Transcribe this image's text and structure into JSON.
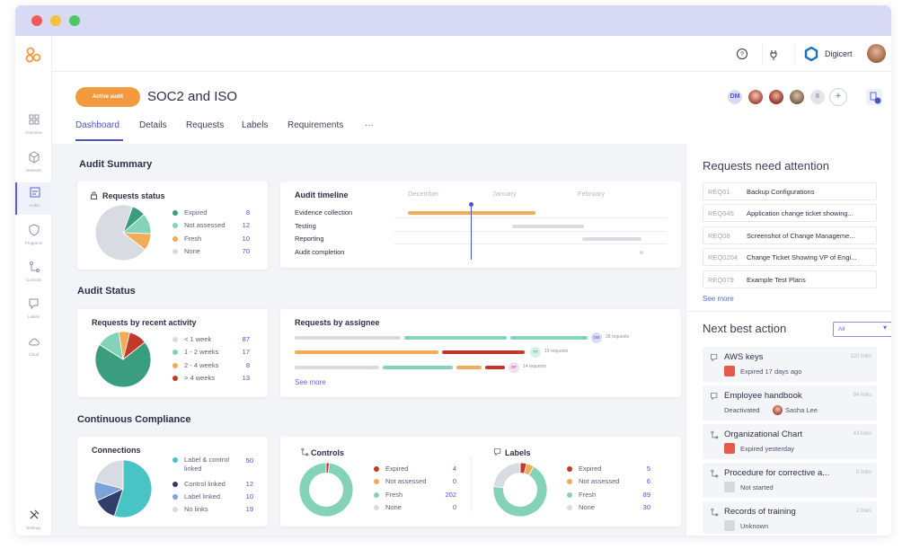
{
  "colors": {
    "teal": "#84d3b8",
    "green": "#3a9e7e",
    "orange": "#f2ac55",
    "gray": "#d9dbe3",
    "red": "#c0392b",
    "blue": "#4a55c8",
    "navy": "#2f3e6b",
    "lightblue": "#7ba3d9",
    "cyan": "#48c4c4"
  },
  "sidebar": {
    "items": [
      {
        "label": "Overview",
        "icon": "grid-icon"
      },
      {
        "label": "Network",
        "icon": "cube-icon"
      },
      {
        "label": "Audits",
        "icon": "audit-icon"
      },
      {
        "label": "Programs",
        "icon": "shield-icon"
      },
      {
        "label": "Controls",
        "icon": "controls-icon"
      },
      {
        "label": "Labels",
        "icon": "label-icon"
      },
      {
        "label": "Cloud",
        "icon": "cloud-icon"
      }
    ],
    "settings": "Settings"
  },
  "topbar": {
    "org": "Digicert"
  },
  "header": {
    "badge": "Active audit",
    "title": "SOC2 and ISO",
    "tabs": [
      "Dashboard",
      "Details",
      "Requests",
      "Labels",
      "Requirements",
      "···"
    ],
    "avatar_initials": "DM",
    "more_count": "8"
  },
  "audit_summary": {
    "title": "Audit Summary",
    "requests_status": {
      "title": "Requests status",
      "legend": [
        {
          "label": "Expired",
          "value": "8"
        },
        {
          "label": "Not assessed",
          "value": "12"
        },
        {
          "label": "Fresh",
          "value": "10"
        },
        {
          "label": "None",
          "value": "70"
        }
      ]
    },
    "timeline": {
      "title": "Audit timeline",
      "months": [
        "December",
        "January",
        "February"
      ],
      "rows": [
        "Evidence collection",
        "Testing",
        "Reporting",
        "Audit completion"
      ]
    }
  },
  "audit_status": {
    "title": "Audit Status",
    "recent_activity": {
      "title": "Requests by recent activity",
      "legend": [
        {
          "label": "< 1 week",
          "value": "87"
        },
        {
          "label": "1 - 2 weeks",
          "value": "17"
        },
        {
          "label": "2 - 4  weeks",
          "value": "8"
        },
        {
          "label": "> 4 weeks",
          "value": "13"
        }
      ]
    },
    "by_assignee": {
      "title": "Requests by assignee",
      "rows": [
        {
          "initials": "DM",
          "count": "28 requests"
        },
        {
          "initials": "TF",
          "count": "19 requests"
        },
        {
          "initials": "DF",
          "count": "14 requests"
        }
      ],
      "see_more": "See more"
    }
  },
  "continuous": {
    "title": "Continuous Compliance",
    "connections": {
      "title": "Connections",
      "legend": [
        {
          "label": "Label & control linked",
          "value": "50"
        },
        {
          "label": "Control linked",
          "value": "12"
        },
        {
          "label": "Label linked",
          "value": "10"
        },
        {
          "label": "No links",
          "value": "19"
        }
      ]
    },
    "controls": {
      "title": "Controls",
      "legend": [
        {
          "label": "Expired",
          "value": "4"
        },
        {
          "label": "Not assessed",
          "value": "0"
        },
        {
          "label": "Fresh",
          "value": "202"
        },
        {
          "label": "None",
          "value": "0"
        }
      ]
    },
    "labels": {
      "title": "Labels",
      "legend": [
        {
          "label": "Expired",
          "value": "5"
        },
        {
          "label": "Not assessed",
          "value": "6"
        },
        {
          "label": "Fresh",
          "value": "89"
        },
        {
          "label": "None",
          "value": "30"
        }
      ]
    }
  },
  "attention": {
    "title": "Requests need attention",
    "rows": [
      {
        "id": "REQ01",
        "text": "Backup Configurations"
      },
      {
        "id": "REQ045",
        "text": "Application change ticket showing..."
      },
      {
        "id": "REQ08",
        "text": "Screenshot of Change Manageme..."
      },
      {
        "id": "REQ0204",
        "text": "Change Ticket Showing VP of Engi..."
      },
      {
        "id": "REQ079",
        "text": "Example Test Plans"
      }
    ],
    "see_more": "See more"
  },
  "next_best": {
    "title": "Next best action",
    "filter": "All",
    "items": [
      {
        "title": "AWS keys",
        "count": "120 links",
        "status": "Expired 17 days ago",
        "status_color": "#e25a4a"
      },
      {
        "title": "Employee handbook",
        "count": "84 links",
        "status": "Deactivated",
        "person": "Sasha Lee",
        "status_color": "#e25a4a"
      },
      {
        "title": "Organizational Chart",
        "count": "43 links",
        "status": "Expired yesterday",
        "status_color": "#e25a4a"
      },
      {
        "title": "Procedure for corrective a...",
        "count": "5 links",
        "status": "Not started",
        "status_color": "#d6d8e0"
      },
      {
        "title": "Records of training",
        "count": "2 links",
        "status": "Unknown",
        "status_color": "#d6d8e0"
      }
    ]
  }
}
